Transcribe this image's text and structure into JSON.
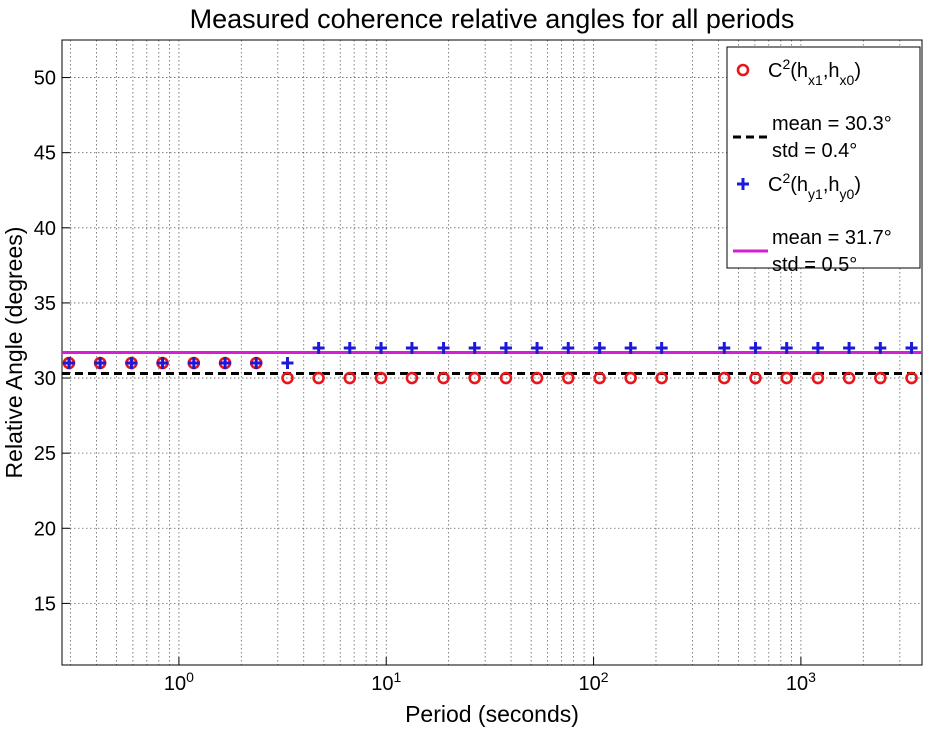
{
  "chart_data": {
    "type": "scatter",
    "title": "Measured coherence relative angles for all periods",
    "xlabel": "Period (seconds)",
    "ylabel": "Relative Angle (degrees)",
    "xscale": "log",
    "xlim": [
      0.273,
      3838
    ],
    "ylim": [
      10.9,
      52.5
    ],
    "xticks": [
      {
        "value": 1,
        "label": "10^0"
      },
      {
        "value": 10,
        "label": "10^1"
      },
      {
        "value": 100,
        "label": "10^2"
      },
      {
        "value": 1000,
        "label": "10^3"
      }
    ],
    "yticks": [
      15,
      20,
      25,
      30,
      35,
      40,
      45,
      50
    ],
    "grid": true,
    "legend": "upper right",
    "x": [
      0.295,
      0.417,
      0.59,
      0.834,
      1.18,
      1.67,
      2.36,
      3.34,
      4.72,
      6.67,
      9.44,
      13.3,
      18.9,
      26.7,
      37.8,
      53.4,
      75.5,
      107,
      151,
      213,
      427,
      604,
      854,
      1208,
      1708,
      2416,
      3417
    ],
    "series": [
      {
        "name": "C^2(h_{x1},h_{x0})",
        "marker": "o",
        "color": "#e8161b",
        "values": [
          31,
          31,
          31,
          31,
          31,
          31,
          31,
          30,
          30,
          30,
          30,
          30,
          30,
          30,
          30,
          30,
          30,
          30,
          30,
          30,
          30,
          30,
          30,
          30,
          30,
          30,
          30
        ],
        "mean": {
          "value": 30.3,
          "std": 0.4,
          "color": "#000000",
          "dash": true,
          "label_lines": [
            "mean = 30.3°",
            "std = 0.4°"
          ]
        }
      },
      {
        "name": "C^2(h_{y1},h_{y0})",
        "marker": "+",
        "color": "#1a1ad8",
        "values": [
          31,
          31,
          31,
          31,
          31,
          31,
          31,
          31,
          32,
          32,
          32,
          32,
          32,
          32,
          32,
          32,
          32,
          32,
          32,
          32,
          32,
          32,
          32,
          32,
          32,
          32,
          32
        ],
        "mean": {
          "value": 31.7,
          "std": 0.5,
          "color": "#d61ed6",
          "dash": false,
          "label_lines": [
            "mean = 31.7°",
            "std = 0.5°"
          ]
        }
      }
    ]
  }
}
